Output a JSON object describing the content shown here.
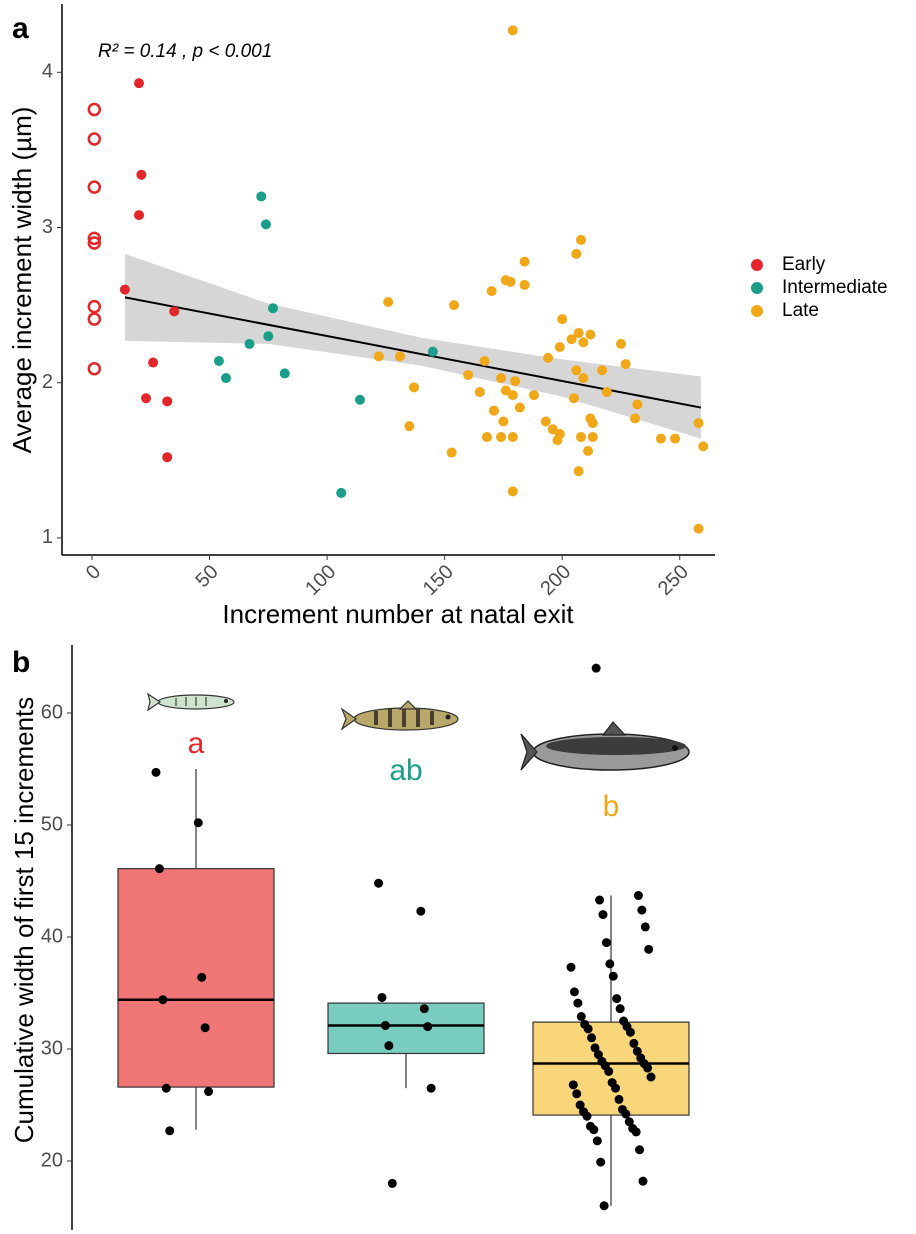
{
  "chart_data": [
    {
      "type": "scatter",
      "panel_label": "a",
      "annotation": "R² = 0.14 , p < 0.001",
      "x_label": "Increment number at natal exit",
      "y_label": "Average increment width (µm)",
      "xlim": [
        -12.75,
        265
      ],
      "ylim": [
        0.89,
        4.44
      ],
      "xticks": [
        0,
        50,
        100,
        150,
        200,
        250
      ],
      "yticks": [
        1,
        2,
        3,
        4
      ],
      "legend": "right",
      "grid": false,
      "series": [
        {
          "name": "Early",
          "color": "#e3262a",
          "x": [
            20,
            21,
            20,
            14,
            35,
            26,
            23,
            32,
            32,
            1,
            1,
            1,
            1,
            1,
            1,
            1,
            1
          ],
          "values": [
            3.93,
            3.34,
            3.08,
            2.6,
            2.46,
            2.13,
            1.9,
            1.88,
            1.52,
            3.76,
            3.57,
            3.26,
            2.93,
            2.9,
            2.49,
            2.41,
            2.09
          ],
          "filled": [
            true,
            true,
            true,
            true,
            true,
            true,
            true,
            true,
            true,
            false,
            false,
            false,
            false,
            false,
            false,
            false,
            false
          ]
        },
        {
          "name": "Intermediate",
          "color": "#1a9e8a",
          "x": [
            72,
            74,
            77,
            75,
            67,
            54,
            57,
            82,
            145,
            114,
            106
          ],
          "values": [
            3.2,
            3.02,
            2.48,
            2.3,
            2.25,
            2.14,
            2.03,
            2.06,
            2.2,
            1.89,
            1.29
          ]
        },
        {
          "name": "Late",
          "color": "#f0a818",
          "x": [
            179,
            208,
            206,
            184,
            176,
            178,
            170,
            184,
            126,
            154,
            200,
            207,
            212,
            204,
            209,
            199,
            225,
            227,
            122,
            131,
            167,
            194,
            217,
            206,
            209,
            137,
            160,
            174,
            180,
            165,
            188,
            179,
            176,
            219,
            205,
            232,
            231,
            171,
            182,
            175,
            193,
            135,
            212,
            213,
            258,
            196,
            199,
            198,
            168,
            174,
            179,
            208,
            213,
            242,
            248,
            211,
            153,
            207,
            179,
            260,
            258
          ],
          "values": [
            4.27,
            2.92,
            2.83,
            2.78,
            2.66,
            2.65,
            2.59,
            2.63,
            2.52,
            2.5,
            2.41,
            2.32,
            2.31,
            2.28,
            2.26,
            2.23,
            2.25,
            2.12,
            2.17,
            2.17,
            2.14,
            2.16,
            2.08,
            2.08,
            2.03,
            1.97,
            2.05,
            2.03,
            2.01,
            1.94,
            1.92,
            1.92,
            1.95,
            1.94,
            1.9,
            1.86,
            1.77,
            1.82,
            1.84,
            1.75,
            1.75,
            1.72,
            1.77,
            1.74,
            1.74,
            1.7,
            1.67,
            1.63,
            1.65,
            1.65,
            1.65,
            1.65,
            1.65,
            1.64,
            1.64,
            1.56,
            1.55,
            1.43,
            1.3,
            1.59,
            1.06
          ]
        }
      ],
      "fit": {
        "x": [
          14,
          259
        ],
        "values": [
          2.55,
          1.84
        ]
      },
      "ci": {
        "x": [
          14,
          75,
          140,
          200,
          259
        ],
        "upper": [
          2.83,
          2.51,
          2.29,
          2.15,
          2.04
        ],
        "lower": [
          2.27,
          2.25,
          2.11,
          1.91,
          1.64
        ]
      }
    },
    {
      "type": "box",
      "panel_label": "b",
      "y_label": "Cumulative width of first 15 increments",
      "ylim": [
        13.84,
        66.07
      ],
      "yticks": [
        20,
        30,
        40,
        50,
        60
      ],
      "categories": [
        null,
        null,
        null
      ],
      "boxes": [
        {
          "letter": "a",
          "color": "#e3262a",
          "fill": "#f07575",
          "q1": 26.6,
          "median": 34.4,
          "q3": 46.1,
          "whisker_low": 22.8,
          "whisker_high": 55.0,
          "points": [
            54.7,
            50.2,
            46.1,
            36.4,
            34.4,
            31.9,
            26.5,
            26.2,
            22.7
          ]
        },
        {
          "letter": "ab",
          "color": "#1a9e8a",
          "fill": "#79cdc0",
          "q1": 29.6,
          "median": 32.1,
          "q3": 34.1,
          "whisker_low": 26.5,
          "whisker_high": 34.1,
          "points": [
            44.8,
            42.3,
            34.6,
            33.6,
            32.1,
            32.0,
            30.3,
            26.5,
            18.0
          ]
        },
        {
          "letter": "b",
          "color": "#f0a818",
          "fill": "#f9d67a",
          "q1": 24.1,
          "median": 28.7,
          "q3": 32.4,
          "whisker_low": 16.0,
          "whisker_high": 43.7,
          "points": [
            64.0,
            43.7,
            43.3,
            42.4,
            42.0,
            40.9,
            39.5,
            38.9,
            37.6,
            37.3,
            36.5,
            35.1,
            34.5,
            34.1,
            33.6,
            32.9,
            32.5,
            32.2,
            32.0,
            31.8,
            31.5,
            31.0,
            30.5,
            30.1,
            29.8,
            29.5,
            29.2,
            28.9,
            28.7,
            28.5,
            28.3,
            28.0,
            27.5,
            27.0,
            26.8,
            26.5,
            26.0,
            25.5,
            25.0,
            24.6,
            24.4,
            24.2,
            24.0,
            23.5,
            23.1,
            22.9,
            22.8,
            22.6,
            21.8,
            21.0,
            19.9,
            18.2,
            16.0
          ]
        }
      ]
    }
  ]
}
